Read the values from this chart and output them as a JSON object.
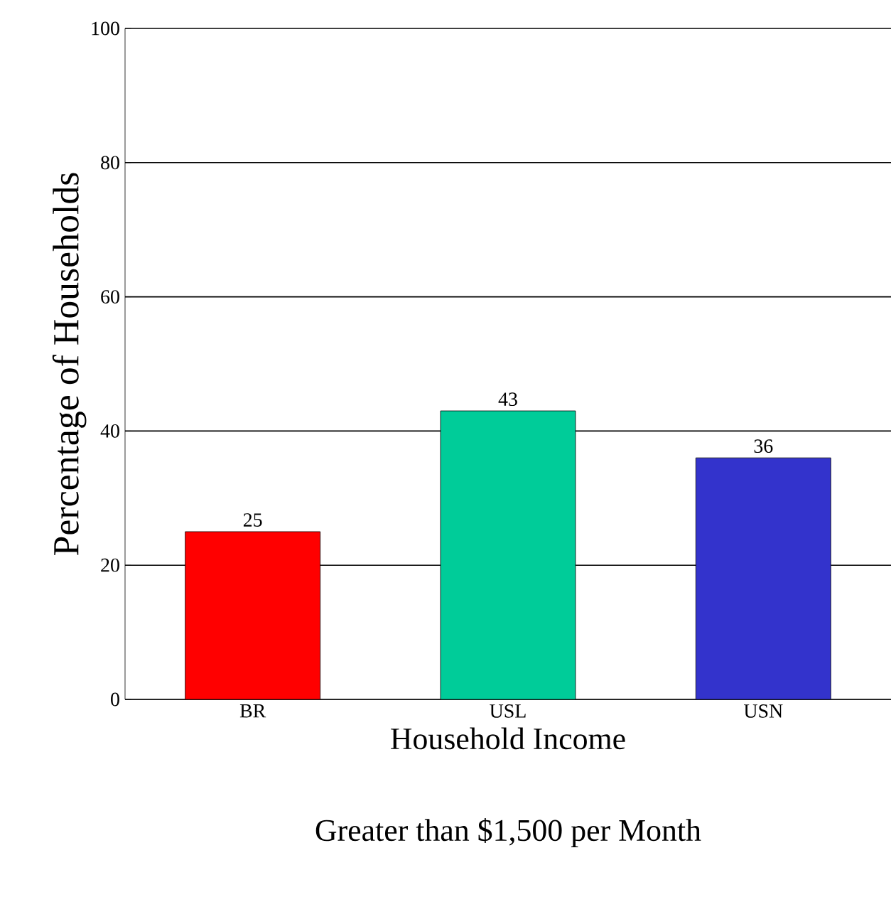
{
  "chart_data": {
    "type": "bar",
    "xlabel": "Household Income",
    "ylabel": "Percentage of Households",
    "annotations": [
      "Greater than $1,500 per Month"
    ],
    "categories": [
      "BR",
      "USL",
      "USN"
    ],
    "values": [
      25,
      43,
      36
    ],
    "colors": [
      "#ff0000",
      "#00cc99",
      "#3333cc"
    ],
    "ylim": [
      0,
      100
    ],
    "yticks": [
      0,
      20,
      40,
      60,
      80,
      100
    ],
    "grid": "y",
    "data_labels": true
  }
}
